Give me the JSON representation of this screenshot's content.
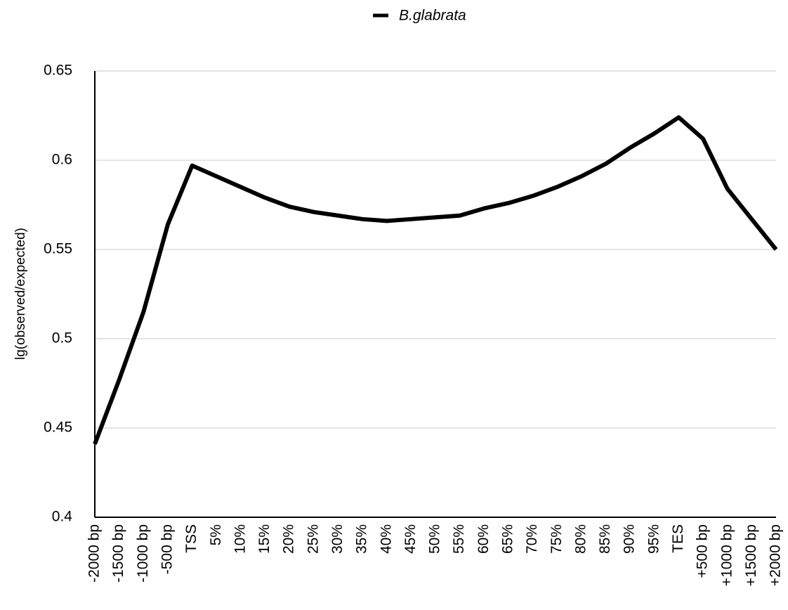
{
  "chart_data": {
    "type": "line",
    "y_label": "lg(observed/expected)",
    "categories": [
      "-2000 bp",
      "-1500 bp",
      "-1000 bp",
      "-500 bp",
      "TSS",
      "5%",
      "10%",
      "15%",
      "20%",
      "25%",
      "30%",
      "35%",
      "40%",
      "45%",
      "50%",
      "55%",
      "60%",
      "65%",
      "70%",
      "75%",
      "80%",
      "85%",
      "90%",
      "95%",
      "TES",
      "+500 bp",
      "+1000 bp",
      "+1500 bp",
      "+2000 bp"
    ],
    "series": [
      {
        "name": "B.glabrata",
        "color": "#000000",
        "values": [
          0.441,
          0.477,
          0.515,
          0.564,
          0.597,
          0.591,
          0.585,
          0.579,
          0.574,
          0.571,
          0.569,
          0.567,
          0.566,
          0.567,
          0.568,
          0.569,
          0.573,
          0.576,
          0.58,
          0.585,
          0.591,
          0.598,
          0.607,
          0.615,
          0.624,
          0.612,
          0.584,
          0.567,
          0.55
        ]
      }
    ],
    "ylim": [
      0.4,
      0.65
    ],
    "yticks": [
      0.4,
      0.45,
      0.5,
      0.55,
      0.6,
      0.65
    ],
    "grid": true,
    "legend": "top"
  }
}
